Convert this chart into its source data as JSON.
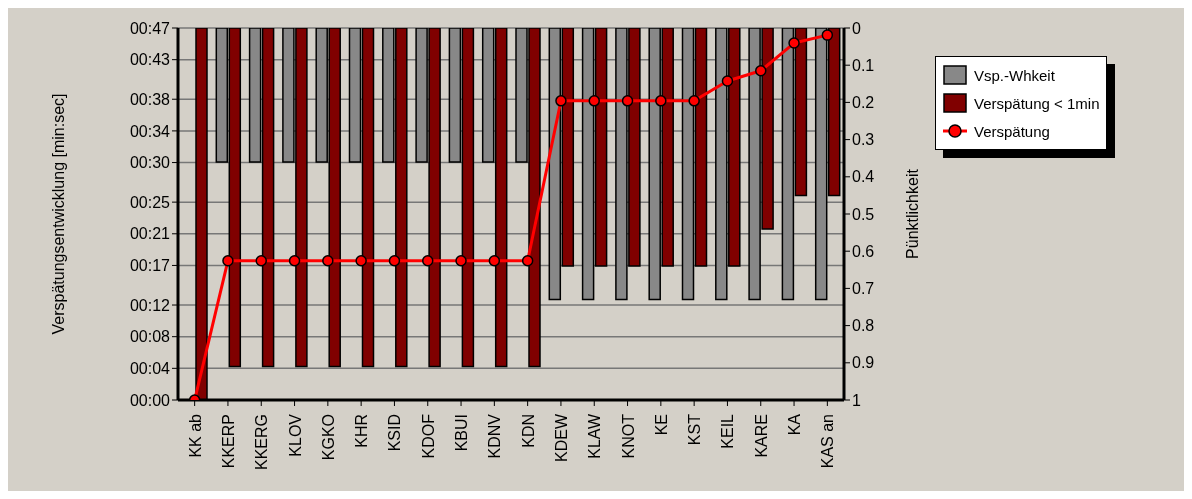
{
  "chart_data": {
    "type": "bar",
    "categories": [
      "KK ab",
      "KKERP",
      "KKERG",
      "KLOV",
      "KGKO",
      "KHR",
      "KSID",
      "KDOF",
      "KBUI",
      "KDNV",
      "KDN",
      "KDEW",
      "KLAW",
      "KNOT",
      "KE",
      "KST",
      "KEIL",
      "KARE",
      "KA",
      "KAS an"
    ],
    "series": [
      {
        "name": "Vsp.-Whkeit",
        "axis": "y2",
        "color": "#888888",
        "values": [
          null,
          0.36,
          0.36,
          0.36,
          0.36,
          0.36,
          0.36,
          0.36,
          0.36,
          0.36,
          0.36,
          0.73,
          0.73,
          0.73,
          0.73,
          0.73,
          0.73,
          0.73,
          0.73,
          0.73
        ]
      },
      {
        "name": "Verspätung < 1min",
        "axis": "y2",
        "color": "#800000",
        "values": [
          1.0,
          0.91,
          0.91,
          0.91,
          0.91,
          0.91,
          0.91,
          0.91,
          0.91,
          0.91,
          0.91,
          0.64,
          0.64,
          0.64,
          0.64,
          0.64,
          0.64,
          0.54,
          0.45,
          0.45
        ]
      },
      {
        "name": "Verspätung",
        "type": "line",
        "axis": "y",
        "color": "#ff0000",
        "values": [
          0,
          17.6,
          17.6,
          17.6,
          17.6,
          17.6,
          17.6,
          17.6,
          17.6,
          17.6,
          17.6,
          37.8,
          37.8,
          37.8,
          37.8,
          37.8,
          40.3,
          41.6,
          45.1,
          46.1
        ]
      }
    ],
    "ylabel": "Verspätungsentwicklung [min:sec]",
    "y2label": "Pünktlichkeit",
    "ylim": [
      0,
      47
    ],
    "yticks": [
      {
        "value": 0,
        "label": "00:00"
      },
      {
        "value": 4,
        "label": "00:04"
      },
      {
        "value": 8,
        "label": "00:08"
      },
      {
        "value": 12,
        "label": "00:12"
      },
      {
        "value": 17,
        "label": "00:17"
      },
      {
        "value": 21,
        "label": "00:21"
      },
      {
        "value": 25,
        "label": "00:25"
      },
      {
        "value": 30,
        "label": "00:30"
      },
      {
        "value": 34,
        "label": "00:34"
      },
      {
        "value": 38,
        "label": "00:38"
      },
      {
        "value": 43,
        "label": "00:43"
      },
      {
        "value": 47,
        "label": "00:47"
      }
    ],
    "y2lim": [
      1,
      0
    ],
    "y2ticks": [
      0,
      0.1,
      0.2,
      0.3,
      0.4,
      0.5,
      0.6,
      0.7,
      0.8,
      0.9,
      1
    ],
    "grid": "y",
    "legend": "top right",
    "marker": "circle",
    "line_style": "solid"
  }
}
